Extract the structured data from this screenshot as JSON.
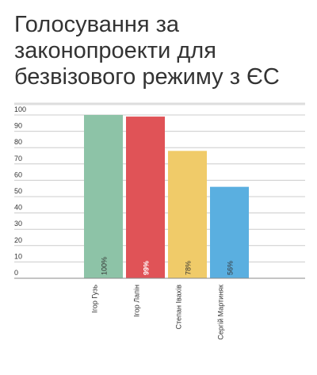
{
  "chart_data": {
    "type": "bar",
    "title": [
      "Голосування за",
      "законопроекти для",
      "безвізового режиму з ЄС"
    ],
    "categories": [
      "Ігор Гузь",
      "Ігор Лапін",
      "Степан Івахів",
      "Сергій Мартиняк"
    ],
    "values": [
      100,
      99,
      78,
      56
    ],
    "value_labels": [
      "100%",
      "99%",
      "78%",
      "56%"
    ],
    "colors": [
      "#8dc3a7",
      "#e05357",
      "#f0cb69",
      "#5aafe0"
    ],
    "ylim": [
      0,
      100
    ],
    "yticks": [
      0,
      10,
      20,
      30,
      40,
      50,
      60,
      70,
      80,
      90,
      100
    ],
    "grid": true
  }
}
